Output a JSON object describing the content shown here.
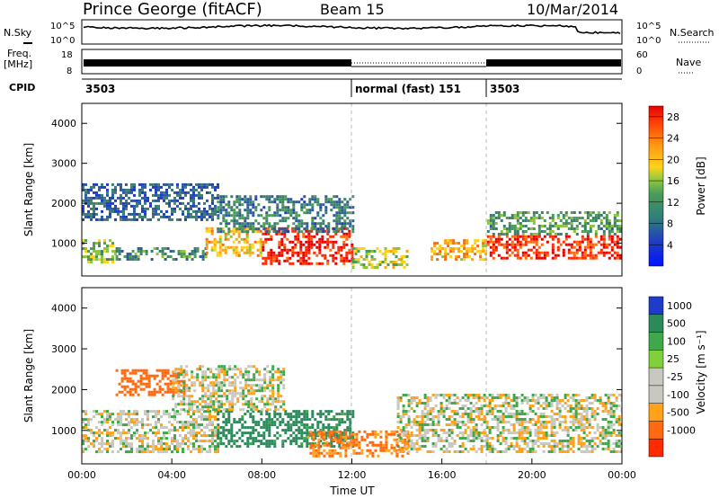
{
  "header": {
    "station": "Prince George (fitACF)",
    "beam": "Beam 15",
    "date": "10/Mar/2014"
  },
  "strips": {
    "nsky_label": "N.Sky",
    "nsearch_label": "N.Search",
    "noise_ticks_left": [
      "10^5",
      "10^0"
    ],
    "noise_ticks_right": [
      "10^5",
      "10^0"
    ],
    "freq_label": "Freq.",
    "freq_unit": "[MHz]",
    "freq_ticks": [
      "18",
      "8"
    ],
    "nave_label": "Nave",
    "nave_ticks": [
      "60",
      "0"
    ],
    "cpid_label": "CPID",
    "cpid_segments": [
      {
        "label": "3503",
        "start": 0,
        "end": 12
      },
      {
        "label": "normal (fast) 151",
        "start": 12,
        "end": 18
      },
      {
        "label": "3503",
        "start": 18,
        "end": 24
      }
    ]
  },
  "chart_data": [
    {
      "type": "heatmap",
      "title": "",
      "ylabel": "Slant Range [km]",
      "xlabel": "",
      "xlim": [
        0,
        24
      ],
      "ylim": [
        180,
        4500
      ],
      "yticks": [
        "1000",
        "2000",
        "3000",
        "4000"
      ],
      "colorbar": {
        "label": "Power [dB]",
        "ticks": [
          "28",
          "24",
          "20",
          "16",
          "12",
          "8",
          "4"
        ],
        "range": [
          0,
          30
        ],
        "colors": [
          "#0014ff",
          "#1f3fc0",
          "#2e5a9e",
          "#3d7f6e",
          "#4a9b58",
          "#8cc43c",
          "#ffd21a",
          "#ffa21a",
          "#ff6a10",
          "#ff2a00",
          "#e80000"
        ]
      },
      "segments": [
        {
          "t0": 0.0,
          "t1": 1.5,
          "r0": 500,
          "r1": 1100,
          "power": 14
        },
        {
          "t0": 1.5,
          "t1": 5.5,
          "r0": 600,
          "r1": 900,
          "power": 11
        },
        {
          "t0": 5.5,
          "t1": 8.0,
          "r0": 700,
          "r1": 1400,
          "power": 19
        },
        {
          "t0": 8.0,
          "t1": 12.0,
          "r0": 500,
          "r1": 1400,
          "power": 27
        },
        {
          "t0": 12.0,
          "t1": 14.5,
          "r0": 400,
          "r1": 900,
          "power": 16
        },
        {
          "t0": 15.5,
          "t1": 18.0,
          "r0": 600,
          "r1": 1100,
          "power": 20
        },
        {
          "t0": 18.0,
          "t1": 24.0,
          "r0": 600,
          "r1": 1200,
          "power": 26
        },
        {
          "t0": 0.0,
          "t1": 6.0,
          "r0": 1600,
          "r1": 2500,
          "power": 7
        },
        {
          "t0": 6.0,
          "t1": 12.0,
          "r0": 1300,
          "r1": 2200,
          "power": 9
        },
        {
          "t0": 18.0,
          "t1": 24.0,
          "r0": 1200,
          "r1": 1800,
          "power": 12
        }
      ]
    },
    {
      "type": "heatmap",
      "title": "",
      "ylabel": "Slant Range [km]",
      "xlabel": "Time UT",
      "xlim": [
        0,
        24
      ],
      "ylim": [
        180,
        4500
      ],
      "xticks": [
        "00:00",
        "04:00",
        "08:00",
        "12:00",
        "16:00",
        "20:00",
        "00:00"
      ],
      "yticks": [
        "1000",
        "2000",
        "3000",
        "4000"
      ],
      "colorbar": {
        "label": "Velocity [m s⁻¹]",
        "ticks": [
          "1000",
          "500",
          "100",
          "25",
          "-25",
          "-100",
          "-500",
          "-1000"
        ],
        "colors": [
          "#1e3cc8",
          "#2a8a5a",
          "#3ea84a",
          "#7fd03a",
          "#c8c8c0",
          "#c8c8c0",
          "#ffa21a",
          "#ff6a10",
          "#ff2a00"
        ]
      },
      "segments": [
        {
          "t0": 0.0,
          "t1": 6.0,
          "r0": 500,
          "r1": 1500,
          "velocity": 0
        },
        {
          "t0": 1.5,
          "t1": 4.5,
          "r0": 1900,
          "r1": 2500,
          "velocity": -200
        },
        {
          "t0": 6.0,
          "t1": 12.0,
          "r0": 600,
          "r1": 1500,
          "velocity": 150
        },
        {
          "t0": 10.0,
          "t1": 14.5,
          "r0": 400,
          "r1": 1000,
          "velocity": -120
        },
        {
          "t0": 14.0,
          "t1": 24.0,
          "r0": 500,
          "r1": 1900,
          "velocity": 0
        },
        {
          "t0": 4.0,
          "t1": 9.0,
          "r0": 1500,
          "r1": 2600,
          "velocity": 0
        }
      ]
    }
  ]
}
